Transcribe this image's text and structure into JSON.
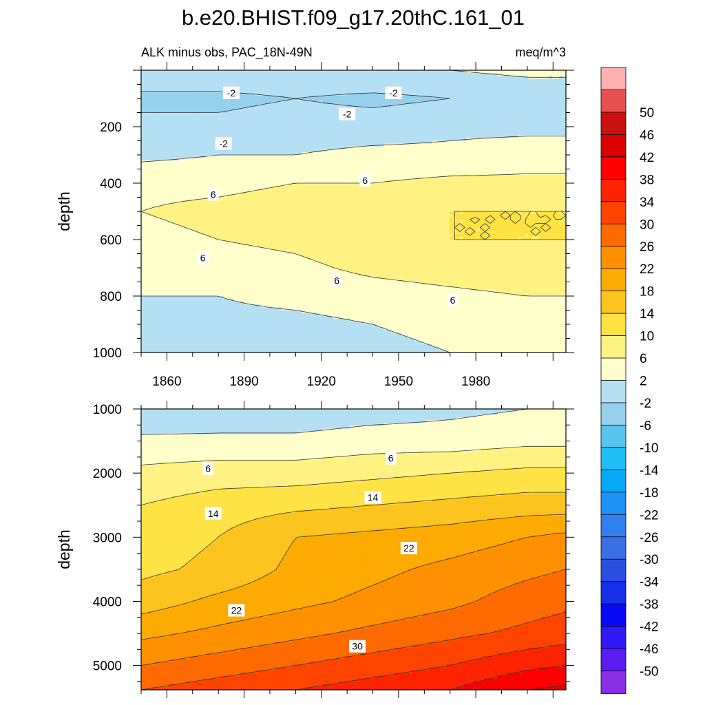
{
  "figure": {
    "title": "b.e20.BHIST.f09_g17.20thC.161_01"
  },
  "chart_data": [
    {
      "type": "heatmap",
      "panel": "upper",
      "subtitle_left": "ALK minus obs, PAC_18N-49N",
      "subtitle_right": "meq/m^3",
      "xlabel": "",
      "ylabel": "depth",
      "xlim": [
        1850,
        2015
      ],
      "ylim": [
        1000,
        0
      ],
      "y_reversed": true,
      "x_ticks": [
        1860,
        1890,
        1920,
        1950,
        1980
      ],
      "y_ticks": [
        200,
        400,
        600,
        800,
        1000
      ],
      "field": {
        "x": [
          1850,
          1880,
          1910,
          1940,
          1970,
          2000,
          2015
        ],
        "y": [
          0,
          100,
          200,
          300,
          400,
          500,
          600,
          700,
          800,
          900,
          1000
        ],
        "z": [
          [
            1,
            1,
            1,
            2,
            2,
            3,
            3
          ],
          [
            -3,
            -3,
            -2,
            -3,
            -2,
            -1,
            -1
          ],
          [
            -1,
            -1,
            0,
            0,
            1,
            1,
            1
          ],
          [
            1,
            2,
            2,
            3,
            3,
            4,
            4
          ],
          [
            5,
            5,
            6,
            6,
            7,
            7,
            7
          ],
          [
            6,
            7,
            8,
            9,
            10,
            10,
            10
          ],
          [
            5,
            6,
            7,
            9,
            10,
            10,
            10
          ],
          [
            3,
            4,
            5,
            7,
            8,
            9,
            9
          ],
          [
            2,
            2,
            3,
            4,
            5,
            6,
            6
          ],
          [
            0,
            1,
            1,
            2,
            3,
            3,
            3
          ],
          [
            -2,
            0,
            1,
            1,
            2,
            3,
            3
          ]
        ]
      },
      "contour_labels": [
        {
          "text": "-2",
          "x": 1885,
          "y": 80
        },
        {
          "text": "-2",
          "x": 1948,
          "y": 80
        },
        {
          "text": "-2",
          "x": 1930,
          "y": 155
        },
        {
          "text": "-2",
          "x": 1882,
          "y": 260
        },
        {
          "text": "6",
          "x": 1878,
          "y": 440
        },
        {
          "text": "6",
          "x": 1937,
          "y": 390
        },
        {
          "text": "6",
          "x": 1874,
          "y": 665
        },
        {
          "text": "6",
          "x": 1926,
          "y": 745
        },
        {
          "text": "6",
          "x": 1971,
          "y": 815
        }
      ]
    },
    {
      "type": "heatmap",
      "panel": "lower",
      "xlabel": "",
      "ylabel": "depth",
      "xlim": [
        1850,
        2015
      ],
      "ylim": [
        5380,
        1000
      ],
      "y_reversed": true,
      "x_ticks": [
        1860,
        1890,
        1920,
        1950,
        1980
      ],
      "y_ticks": [
        1000,
        2000,
        3000,
        4000,
        5000
      ],
      "field": {
        "x": [
          1850,
          1880,
          1910,
          1940,
          1970,
          2000,
          2015
        ],
        "y": [
          1000,
          1500,
          2000,
          2500,
          3000,
          3500,
          4000,
          4500,
          5000,
          5380
        ],
        "z": [
          [
            -2,
            -1,
            -1,
            0,
            1,
            2,
            2
          ],
          [
            3,
            3,
            3,
            4,
            4,
            5,
            5
          ],
          [
            7,
            8,
            8,
            9,
            10,
            11,
            11
          ],
          [
            10,
            12,
            13,
            14,
            15,
            16,
            16
          ],
          [
            12,
            14,
            18,
            19,
            20,
            22,
            23
          ],
          [
            13,
            15,
            19,
            21,
            23,
            25,
            26
          ],
          [
            16,
            19,
            21,
            23,
            25,
            28,
            29
          ],
          [
            21,
            23,
            25,
            27,
            29,
            31,
            32
          ],
          [
            26,
            28,
            30,
            32,
            34,
            37,
            38
          ],
          [
            30,
            32,
            34,
            36,
            38,
            42,
            43
          ]
        ]
      },
      "contour_labels": [
        {
          "text": "6",
          "x": 1876,
          "y": 1930
        },
        {
          "text": "6",
          "x": 1947,
          "y": 1770
        },
        {
          "text": "14",
          "x": 1878,
          "y": 2630
        },
        {
          "text": "14",
          "x": 1940,
          "y": 2380
        },
        {
          "text": "22",
          "x": 1954,
          "y": 3170
        },
        {
          "text": "22",
          "x": 1887,
          "y": 4140
        },
        {
          "text": "30",
          "x": 1934,
          "y": 4700
        }
      ]
    }
  ],
  "colorbar": {
    "levels": [
      -50,
      -46,
      -42,
      -38,
      -34,
      -30,
      -26,
      -22,
      -18,
      -14,
      -10,
      -6,
      -2,
      2,
      6,
      10,
      14,
      18,
      22,
      26,
      30,
      34,
      38,
      42,
      46,
      50
    ],
    "colors": [
      "#8b2ee8",
      "#5a1cf0",
      "#2f19f7",
      "#0a0bf5",
      "#1530e8",
      "#2c4ee0",
      "#3b6fe6",
      "#2e80f0",
      "#1c93f5",
      "#06a8f7",
      "#1fbef7",
      "#59c5ef",
      "#95d0ec",
      "#b5e0f4",
      "#ffffcc",
      "#fff282",
      "#ffe244",
      "#fdc31e",
      "#fdab00",
      "#ff9100",
      "#ff6b00",
      "#ff4400",
      "#ff2400",
      "#ff0000",
      "#dd0000",
      "#cc1010",
      "#e85050",
      "#ffb0b0"
    ]
  }
}
